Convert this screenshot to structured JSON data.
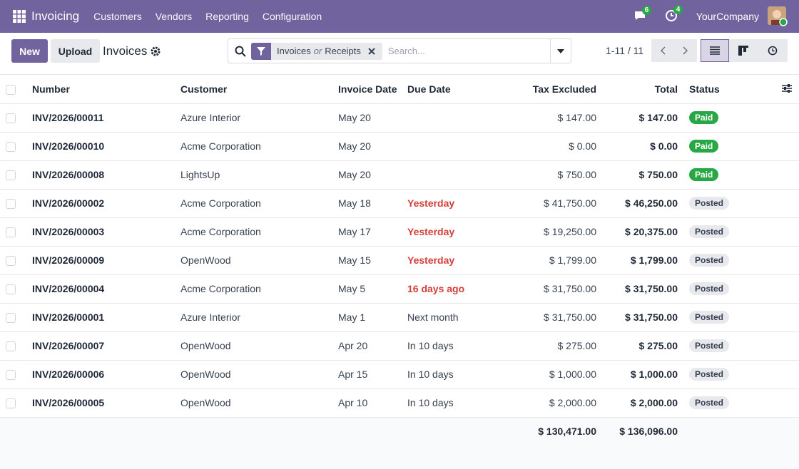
{
  "navbar": {
    "app": "Invoicing",
    "menu": [
      "Customers",
      "Vendors",
      "Reporting",
      "Configuration"
    ],
    "messages_badge": 6,
    "activities_badge": 4,
    "company": "YourCompany"
  },
  "control_panel": {
    "new_button": "New",
    "upload_button": "Upload",
    "breadcrumb": "Invoices",
    "filter_facet": {
      "first": "Invoices",
      "separator": "or",
      "second": "Receipts"
    },
    "search_placeholder": "Search...",
    "pager": "1-11 / 11"
  },
  "table": {
    "columns": [
      "Number",
      "Customer",
      "Invoice Date",
      "Due Date",
      "Tax Excluded",
      "Total",
      "Status"
    ],
    "rows": [
      {
        "number": "INV/2026/00011",
        "customer": "Azure Interior",
        "invoice_date": "May 20",
        "due_date": null,
        "due_color": null,
        "tax_excluded": "$ 147.00",
        "total": "$ 147.00",
        "status": "Paid",
        "status_color": "#28a745"
      },
      {
        "number": "INV/2026/00010",
        "customer": "Acme Corporation",
        "invoice_date": "May 20",
        "due_date": null,
        "due_color": null,
        "tax_excluded": "$ 0.00",
        "total": "$ 0.00",
        "status": "Paid",
        "status_color": "#28a745"
      },
      {
        "number": "INV/2026/00008",
        "customer": "LightsUp",
        "invoice_date": "May 20",
        "due_date": null,
        "due_color": null,
        "tax_excluded": "$ 750.00",
        "total": "$ 750.00",
        "status": "Paid",
        "status_color": "#28a745"
      },
      {
        "number": "INV/2026/00002",
        "customer": "Acme Corporation",
        "invoice_date": "May 18",
        "due_date": "Yesterday",
        "due_color": "#d23f3a",
        "tax_excluded": "$ 41,750.00",
        "total": "$ 46,250.00",
        "status": "Posted",
        "status_color": "#e7e9ed"
      },
      {
        "number": "INV/2026/00003",
        "customer": "Acme Corporation",
        "invoice_date": "May 17",
        "due_date": "Yesterday",
        "due_color": "#d23f3a",
        "tax_excluded": "$ 19,250.00",
        "total": "$ 20,375.00",
        "status": "Posted",
        "status_color": "#e7e9ed"
      },
      {
        "number": "INV/2026/00009",
        "customer": "OpenWood",
        "invoice_date": "May 15",
        "due_date": "Yesterday",
        "due_color": "#d23f3a",
        "tax_excluded": "$ 1,799.00",
        "total": "$ 1,799.00",
        "status": "Posted",
        "status_color": "#e7e9ed"
      },
      {
        "number": "INV/2026/00004",
        "customer": "Acme Corporation",
        "invoice_date": "May 5",
        "due_date": "16 days ago",
        "due_color": "#d23f3a",
        "tax_excluded": "$ 31,750.00",
        "total": "$ 31,750.00",
        "status": "Posted",
        "status_color": "#e7e9ed"
      },
      {
        "number": "INV/2026/00001",
        "customer": "Azure Interior",
        "invoice_date": "May 1",
        "due_date": "Next month",
        "due_color": null,
        "tax_excluded": "$ 31,750.00",
        "total": "$ 31,750.00",
        "status": "Posted",
        "status_color": "#e7e9ed"
      },
      {
        "number": "INV/2026/00007",
        "customer": "OpenWood",
        "invoice_date": "Apr 20",
        "due_date": "In 10 days",
        "due_color": null,
        "tax_excluded": "$ 275.00",
        "total": "$ 275.00",
        "status": "Posted",
        "status_color": "#e7e9ed"
      },
      {
        "number": "INV/2026/00006",
        "customer": "OpenWood",
        "invoice_date": "Apr 15",
        "due_date": "In 10 days",
        "due_color": null,
        "tax_excluded": "$ 1,000.00",
        "total": "$ 1,000.00",
        "status": "Posted",
        "status_color": "#e7e9ed"
      },
      {
        "number": "INV/2026/00005",
        "customer": "OpenWood",
        "invoice_date": "Apr 10",
        "due_date": "In 10 days",
        "due_color": null,
        "tax_excluded": "$ 2,000.00",
        "total": "$ 2,000.00",
        "status": "Posted",
        "status_color": "#e7e9ed"
      }
    ],
    "totals": {
      "tax_excluded": "$ 130,471.00",
      "total": "$ 136,096.00"
    }
  }
}
